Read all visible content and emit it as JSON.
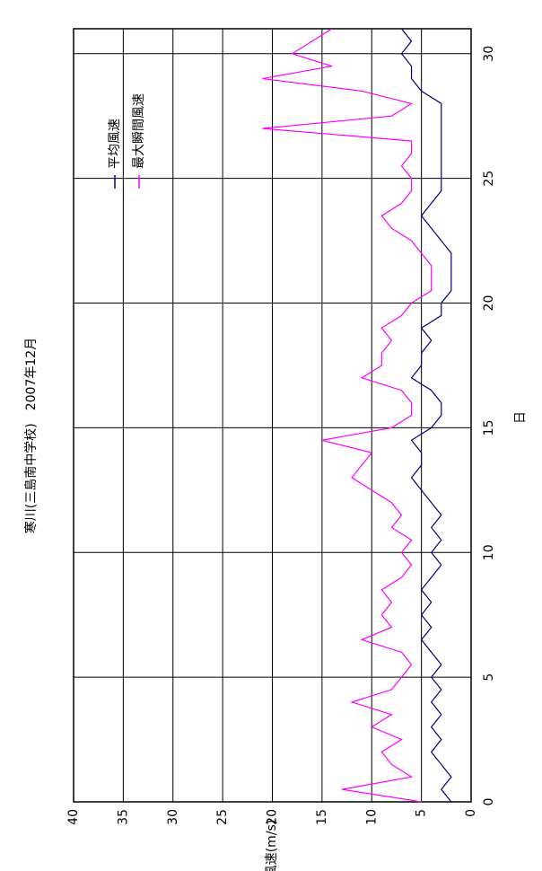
{
  "chart_data": {
    "type": "line",
    "title": "寒川(三島南中学校)　2007年12月",
    "x_label": "日",
    "y_label": "風速(m/s)",
    "x": [
      0,
      0.5,
      1,
      1.5,
      2,
      2.5,
      3,
      3.5,
      4,
      4.5,
      5,
      5.5,
      6,
      6.5,
      7,
      7.5,
      8,
      8.5,
      9,
      9.5,
      10,
      10.5,
      11,
      11.5,
      12,
      12.5,
      13,
      13.5,
      14,
      14.5,
      15,
      15.5,
      16,
      16.5,
      17,
      17.5,
      18,
      18.5,
      19,
      19.5,
      20,
      20.5,
      21,
      21.5,
      22,
      22.5,
      23,
      23.5,
      24,
      24.5,
      25,
      25.5,
      26,
      26.5,
      27,
      27.5,
      28,
      28.5,
      29,
      29.5,
      30,
      30.5,
      31
    ],
    "series": [
      {
        "name": "平均風速",
        "color": "#000080",
        "values": [
          2,
          3,
          2,
          3,
          4,
          3,
          4,
          3,
          4,
          3,
          4,
          3,
          4,
          5,
          4,
          5,
          4,
          5,
          4,
          3,
          4,
          3,
          4,
          3,
          4,
          5,
          6,
          5,
          5,
          6,
          4,
          3,
          3,
          4,
          6,
          5,
          5,
          4,
          5,
          3,
          3,
          2,
          2,
          2,
          2,
          3,
          4,
          5,
          4,
          3,
          3,
          3,
          3,
          3,
          3,
          3,
          3,
          5,
          6,
          6,
          7,
          6,
          7
        ]
      },
      {
        "name": "最大瞬間風速",
        "color": "#ff00ff",
        "values": [
          5,
          13,
          6,
          8,
          9,
          7,
          10,
          8,
          12,
          8,
          7,
          6,
          7,
          11,
          8,
          9,
          8,
          9,
          7,
          6,
          7,
          6,
          8,
          7,
          8,
          10,
          12,
          11,
          10,
          15,
          8,
          6,
          6,
          7,
          11,
          9,
          9,
          8,
          9,
          7,
          6,
          4,
          4,
          4,
          5,
          6,
          8,
          9,
          7,
          6,
          6,
          7,
          6,
          6,
          21,
          8,
          6,
          11,
          21,
          14,
          18,
          16,
          14
        ]
      }
    ],
    "xlim": [
      0,
      31
    ],
    "xticks": [
      0,
      5,
      10,
      15,
      20,
      25,
      30
    ],
    "ylim": [
      0,
      40
    ],
    "yticks": [
      0,
      5,
      10,
      15,
      20,
      25,
      30,
      35,
      40
    ],
    "grid": true,
    "legend": "upper right"
  }
}
